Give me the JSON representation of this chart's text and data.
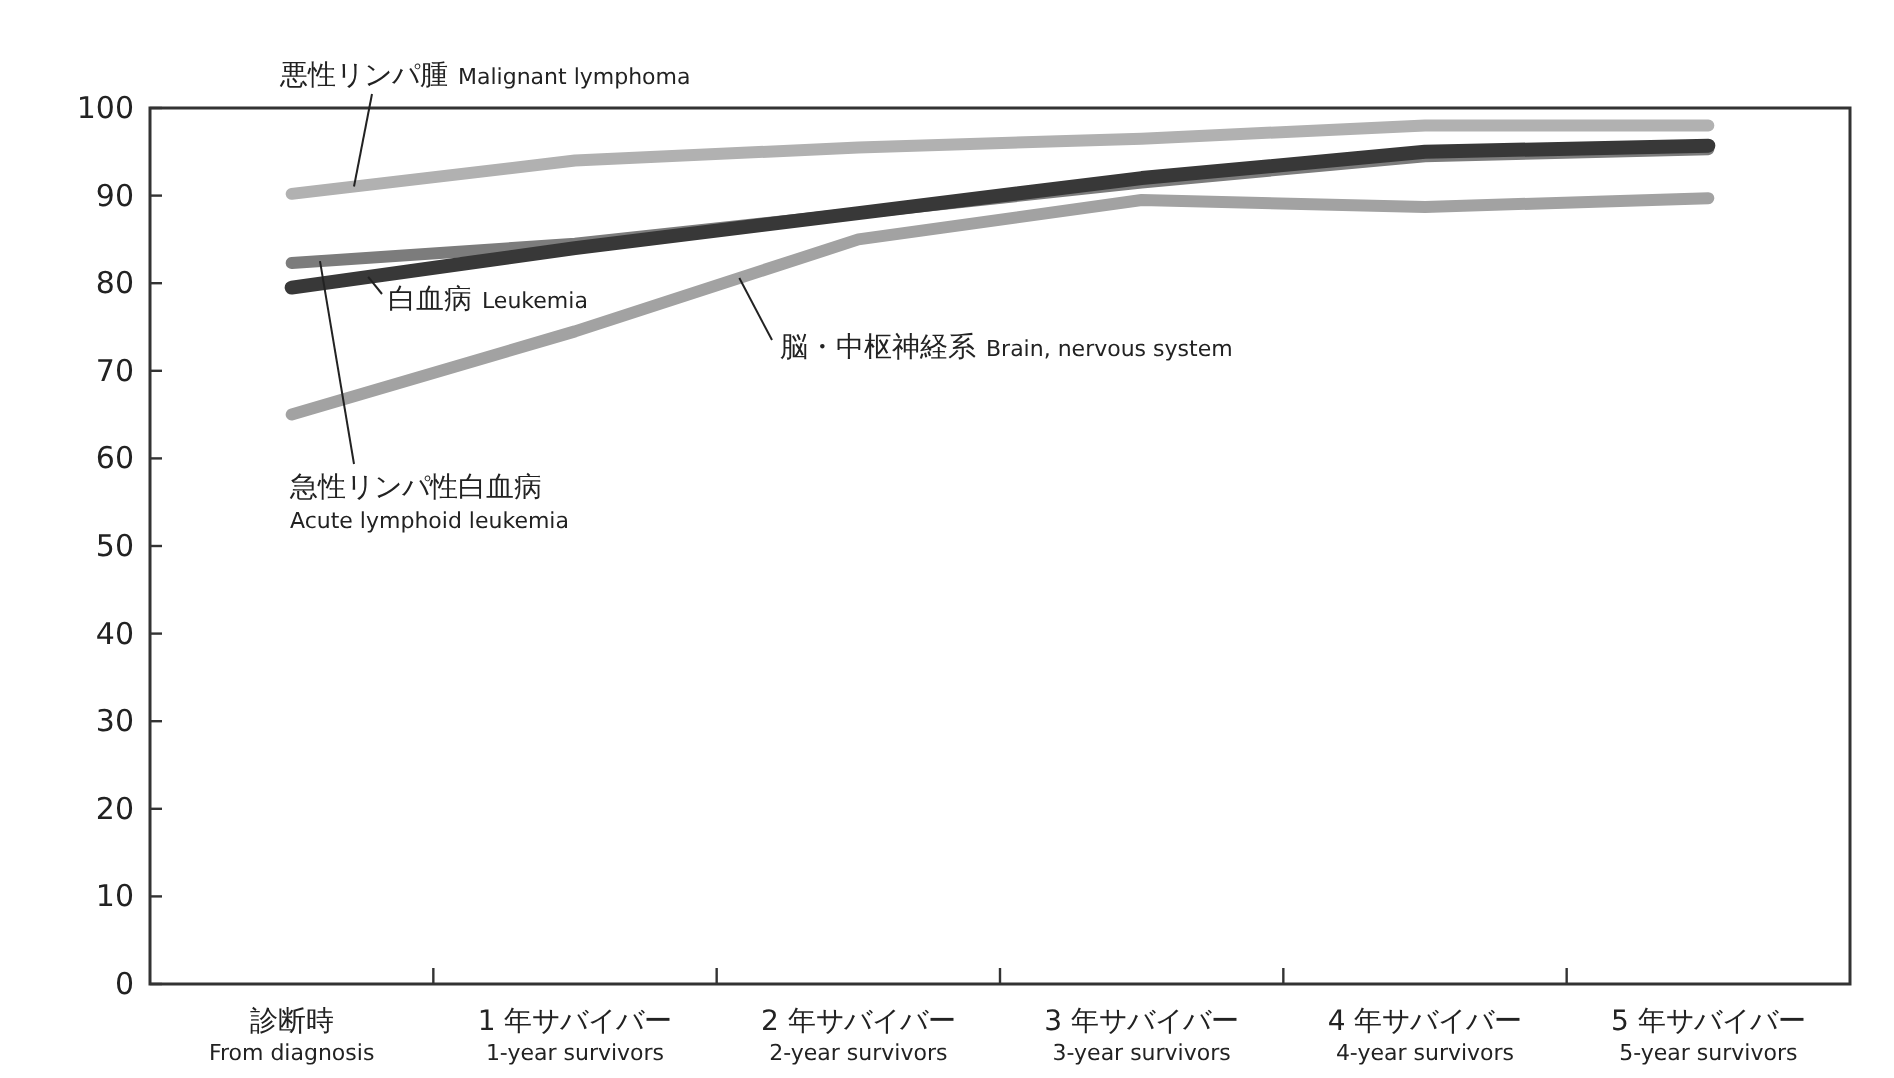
{
  "chart_data": {
    "type": "line",
    "categories": [
      "診断時\nFrom diagnosis",
      "1 年サバイバー\n1-year survivors",
      "2 年サバイバー\n2-year survivors",
      "3 年サバイバー\n3-year survivors",
      "4 年サバイバー\n4-year survivors",
      "5 年サバイバー\n5-year survivors"
    ],
    "ylim": [
      0,
      100
    ],
    "yticks": [
      0,
      10,
      20,
      30,
      40,
      50,
      60,
      70,
      80,
      90,
      100
    ],
    "series": [
      {
        "name": "悪性リンパ腫 Malignant lymphoma",
        "color": "#b1b1b1",
        "values": [
          90.2,
          94,
          95.5,
          96.5,
          98,
          98
        ]
      },
      {
        "name": "脳・中枢神経系 Brain, nervous system",
        "color": "#a2a2a2",
        "values": [
          65,
          74.5,
          85,
          89.5,
          88.7,
          89.7
        ]
      },
      {
        "name": "急性リンパ性白血病\nAcute lymphoid leukemia",
        "color": "#7c7c7c",
        "values": [
          82.3,
          84.5,
          88,
          91.5,
          94.5,
          95.3
        ]
      },
      {
        "name": "白血病 Leukemia",
        "color": "#383838",
        "values": [
          79.5,
          84,
          88,
          92,
          95,
          95.7
        ]
      }
    ]
  }
}
